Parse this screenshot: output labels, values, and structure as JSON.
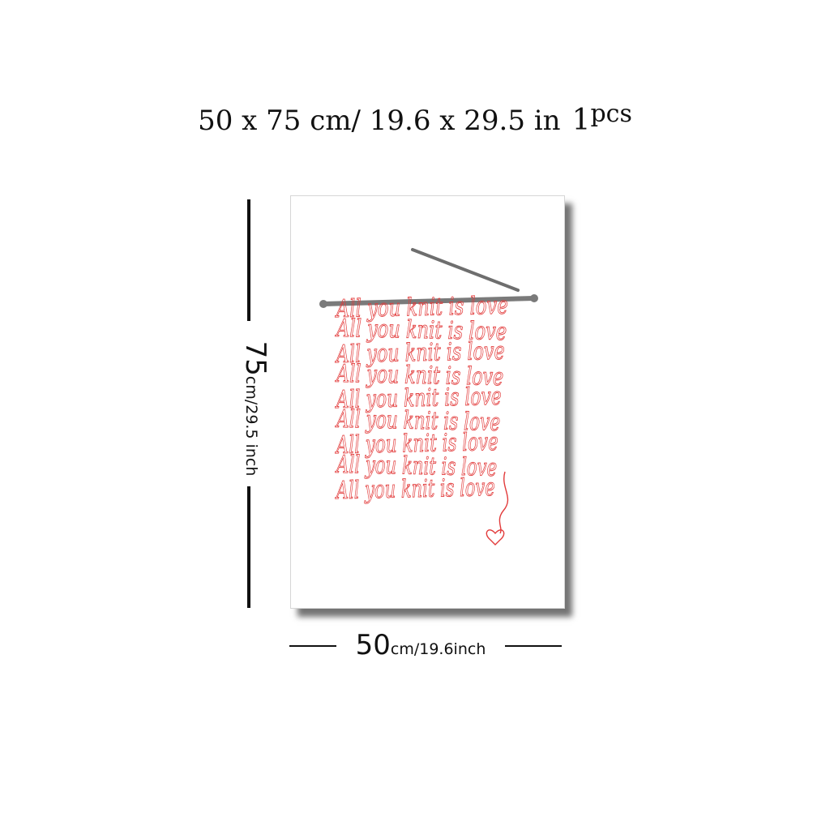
{
  "title": {
    "main": "50 x 75 cm/ 19.6 x 29.5 in",
    "quantity": "1",
    "unit": "pcs"
  },
  "dimensions": {
    "height_value": "75",
    "height_unit": "cm/29.5 inch",
    "width_value": "50",
    "width_unit": "cm/19.6inch"
  },
  "poster": {
    "text_lines": [
      "All you knit is love",
      "All you knit is love",
      "All you knit is love",
      "All you knit is love",
      "All you knit is love",
      "All you knit is love",
      "All you knit is love",
      "All you knit is love",
      "All you knit is love"
    ],
    "ink_color": "#e23a3a",
    "needle_color": "#7a7a7a",
    "icons": [
      "knitting-needle-icon",
      "heart-icon"
    ]
  }
}
